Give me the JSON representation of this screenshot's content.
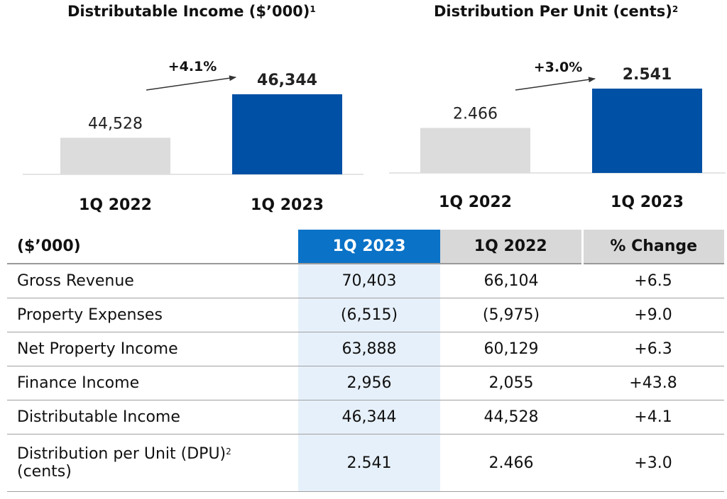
{
  "chart_data": [
    {
      "type": "bar",
      "title": "Distributable Income ($’000)",
      "title_note": "1",
      "categories": [
        "1Q 2022",
        "1Q 2023"
      ],
      "values": [
        44528,
        46344
      ],
      "value_labels": [
        "44,528",
        "46,344"
      ],
      "change": "+4.1%",
      "colors": [
        "#dcdcdc",
        "#0050a5"
      ],
      "ylim": [
        43000,
        47000
      ],
      "grid": false,
      "legend": "none"
    },
    {
      "type": "bar",
      "title": "Distribution Per Unit (cents)",
      "title_note": "2",
      "categories": [
        "1Q 2022",
        "1Q 2023"
      ],
      "values": [
        2.466,
        2.541
      ],
      "value_labels": [
        "2.466",
        "2.541"
      ],
      "change": "+3.0%",
      "colors": [
        "#dcdcdc",
        "#0050a5"
      ],
      "ylim": [
        2.38,
        2.56
      ],
      "grid": false,
      "legend": "none"
    }
  ],
  "table": {
    "headers": [
      "($’000)",
      "1Q 2023",
      "1Q 2022",
      "% Change"
    ],
    "rows": [
      {
        "label": "Gross Revenue",
        "current": "70,403",
        "prior": "66,104",
        "change": "+6.5"
      },
      {
        "label": "Property Expenses",
        "current": "(6,515)",
        "prior": "(5,975)",
        "change": "+9.0"
      },
      {
        "label": "Net Property Income",
        "current": "63,888",
        "prior": "60,129",
        "change": "+6.3"
      },
      {
        "label": "Finance Income",
        "current": "2,956",
        "prior": "2,055",
        "change": "+43.8"
      },
      {
        "label": "Distributable Income",
        "current": "46,344",
        "prior": "44,528",
        "change": "+4.1"
      }
    ],
    "dpu_row": {
      "label": "Distribution per Unit (DPU)",
      "label_note": "2",
      "label_line2": "(cents)",
      "current": "2.541",
      "prior": "2.466",
      "change": "+3.0"
    }
  },
  "colors": {
    "accent_blue": "#0050a5",
    "header_blue": "#0a72c7",
    "bar_grey": "#dcdcdc",
    "header_grey": "#d8d8d8",
    "highlight_column": "#e6f0fa"
  }
}
